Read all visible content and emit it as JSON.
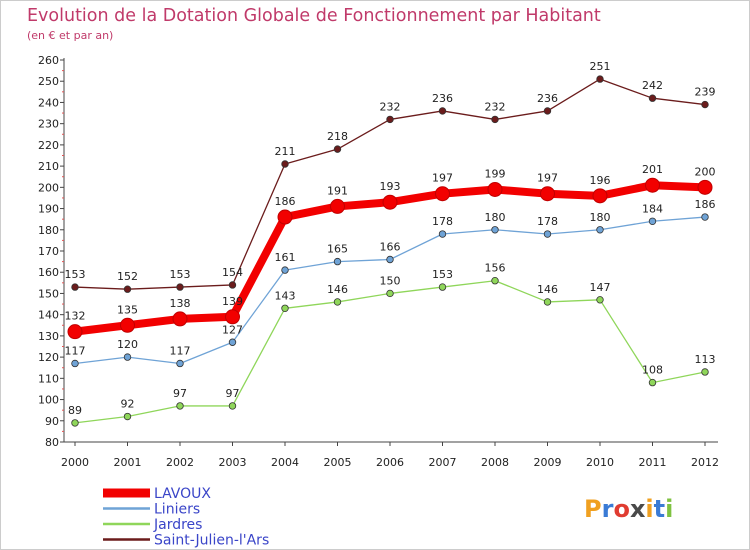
{
  "chart_data": {
    "type": "line",
    "title": "Evolution de la Dotation Globale de Fonctionnement par Habitant",
    "subtitle": "(en € et par an)",
    "xlabel": "",
    "ylabel": "",
    "categories": [
      "2000",
      "2001",
      "2002",
      "2003",
      "2004",
      "2005",
      "2006",
      "2007",
      "2008",
      "2009",
      "2010",
      "2011",
      "2012"
    ],
    "ylim": [
      80,
      260
    ],
    "ytick_step": 10,
    "grid": false,
    "legend_position": "bottom-left",
    "series": [
      {
        "name": "Saint-Julien-l'Ars",
        "color": "#6b1c1c",
        "values": [
          153,
          152,
          153,
          154,
          211,
          218,
          232,
          236,
          232,
          236,
          251,
          242,
          239
        ]
      },
      {
        "name": "Jardres",
        "color": "#8fd65a",
        "values": [
          89,
          92,
          97,
          97,
          143,
          146,
          150,
          153,
          156,
          146,
          147,
          108,
          113
        ]
      },
      {
        "name": "Liniers",
        "color": "#6fa3d6",
        "values": [
          117,
          120,
          117,
          127,
          161,
          165,
          166,
          178,
          180,
          178,
          180,
          184,
          186
        ]
      },
      {
        "name": "LAVOUX",
        "color": "#f20000",
        "values": [
          132,
          135,
          138,
          139,
          186,
          191,
          193,
          197,
          199,
          197,
          196,
          201,
          200
        ]
      }
    ],
    "legend_order": [
      "LAVOUX",
      "Liniers",
      "Jardres",
      "Saint-Julien-l'Ars"
    ]
  },
  "logo": {
    "text": "Proxiti",
    "letters": [
      "P",
      "r",
      "o",
      "x",
      "i",
      "t",
      "i"
    ],
    "colors": [
      "#f0a020",
      "#3a7bd5",
      "#e03c31",
      "#4a4a4a",
      "#f0a020",
      "#3a7bd5",
      "#7fc241"
    ]
  }
}
